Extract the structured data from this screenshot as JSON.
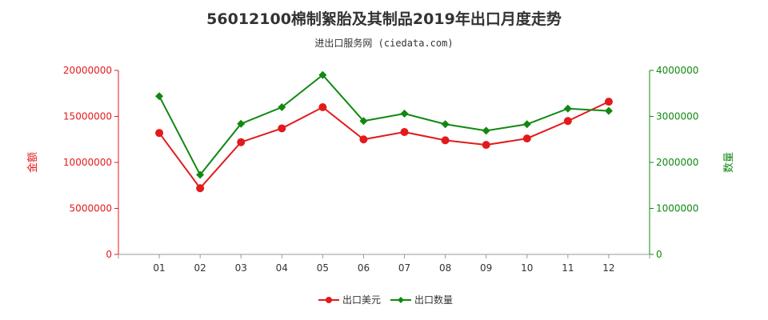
{
  "chart_data": {
    "type": "line",
    "title": "56012100棉制絮胎及其制品2019年出口月度走势",
    "subtitle": "进出口服务网 (ciedata.com)",
    "categories": [
      "01",
      "02",
      "03",
      "04",
      "05",
      "06",
      "07",
      "08",
      "09",
      "10",
      "11",
      "12"
    ],
    "y_left": {
      "label": "金额",
      "range": [
        0,
        20000000
      ],
      "ticks": [
        "0",
        "5000000",
        "10000000",
        "15000000",
        "20000000"
      ],
      "color": "#e31a1c"
    },
    "y_right": {
      "label": "数量",
      "range": [
        0,
        4000000
      ],
      "ticks": [
        "0",
        "1000000",
        "2000000",
        "3000000",
        "4000000"
      ],
      "color": "#118811"
    },
    "series": [
      {
        "name": "出口美元",
        "axis": "left",
        "color": "#e31a1c",
        "marker": "circle",
        "values": [
          13200000,
          7200000,
          12200000,
          13700000,
          16000000,
          12500000,
          13300000,
          12400000,
          11900000,
          12600000,
          14500000,
          16600000
        ]
      },
      {
        "name": "出口数量",
        "axis": "right",
        "color": "#118811",
        "marker": "diamond",
        "values": [
          3440000,
          1730000,
          2840000,
          3200000,
          3900000,
          2900000,
          3060000,
          2830000,
          2690000,
          2830000,
          3170000,
          3120000
        ]
      }
    ],
    "legend_position": "bottom-center",
    "grid": false
  }
}
